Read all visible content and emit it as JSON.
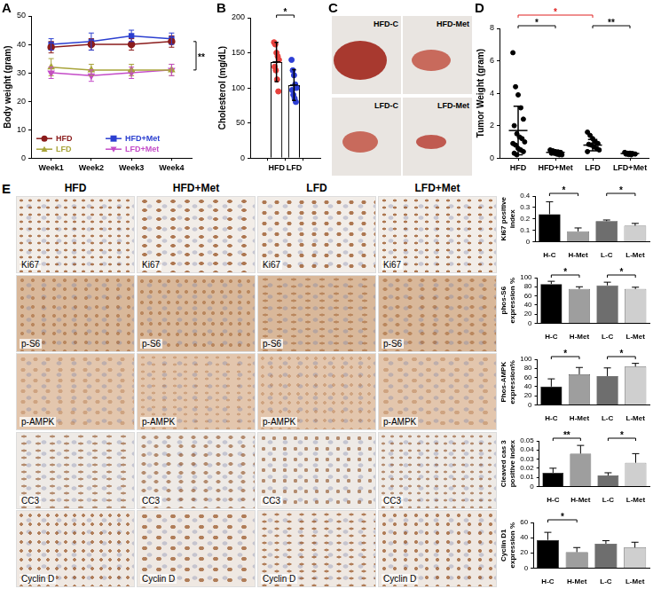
{
  "chart_data": [
    {
      "panel": "A",
      "type": "line",
      "y_label": "Body weight (gram)",
      "categories": [
        "Week1",
        "Week2",
        "Week3",
        "Week4"
      ],
      "series": [
        {
          "name": "HFD",
          "color": "#8b1c1c",
          "marker": "circle",
          "values": [
            39,
            40,
            40,
            41
          ],
          "errors": [
            2,
            2,
            2,
            2
          ]
        },
        {
          "name": "HFD+Met",
          "color": "#2b3fd0",
          "marker": "square",
          "values": [
            40,
            41,
            43,
            42
          ],
          "errors": [
            2,
            3,
            2,
            2
          ]
        },
        {
          "name": "LFD",
          "color": "#a8a43a",
          "marker": "triangle",
          "values": [
            32,
            31,
            31,
            31
          ],
          "errors": [
            3,
            2,
            2,
            2
          ]
        },
        {
          "name": "LFD+Met",
          "color": "#c44cc8",
          "marker": "triangle-down",
          "values": [
            30,
            29,
            30,
            31
          ],
          "errors": [
            2,
            2,
            2,
            2
          ]
        }
      ],
      "ylim": [
        0,
        50
      ],
      "yticks": [
        0,
        10,
        20,
        30,
        40,
        50
      ],
      "legend": "bottom-left",
      "annotations": [
        {
          "text": "**",
          "from": "HFD",
          "to": "LFD"
        }
      ]
    },
    {
      "panel": "B",
      "type": "bar",
      "y_label": "Cholesterol (mg/dL)",
      "categories": [
        "HFD",
        "LFD"
      ],
      "values": [
        137,
        104
      ],
      "errors": [
        28,
        22
      ],
      "points": [
        [
          165,
          162,
          150,
          145,
          140,
          130,
          125,
          112,
          95
        ],
        [
          140,
          125,
          118,
          105,
          100,
          97,
          90,
          85,
          80
        ]
      ],
      "colors": [
        "#e8413c",
        "#2e3fd6"
      ],
      "ylim": [
        0,
        200
      ],
      "yticks": [
        0,
        50,
        100,
        150,
        200
      ],
      "annotations": [
        {
          "text": "*",
          "from": "HFD",
          "to": "LFD"
        }
      ]
    },
    {
      "panel": "D",
      "type": "dot",
      "y_label": "Tumor Weight (gram)",
      "categories": [
        "HFD",
        "HFD+Met",
        "LFD",
        "LFD+Met"
      ],
      "values": [
        1.7,
        0.35,
        0.8,
        0.28
      ],
      "errors": [
        1.5,
        0.1,
        0.35,
        0.06
      ],
      "points": [
        [
          6.5,
          4.4,
          3.9,
          3.1,
          2.4,
          2.0,
          1.5,
          1.3,
          1.2,
          1.0,
          0.9,
          0.8,
          0.6,
          0.5,
          0.4,
          0.3,
          0.2
        ],
        [
          0.5,
          0.45,
          0.4,
          0.38,
          0.35,
          0.3,
          0.3,
          0.25,
          0.2,
          0.2
        ],
        [
          1.6,
          1.4,
          1.2,
          1.0,
          0.9,
          0.85,
          0.8,
          0.7,
          0.6,
          0.5,
          0.4
        ],
        [
          0.35,
          0.3,
          0.3,
          0.28,
          0.25,
          0.25,
          0.22,
          0.2
        ]
      ],
      "color": "#000000",
      "ylim": [
        0,
        8
      ],
      "yticks": [
        0,
        2,
        4,
        6,
        8
      ],
      "annotations": [
        {
          "text": "*",
          "from": "HFD",
          "to": "HFD+Met"
        },
        {
          "text": "*",
          "from": "HFD",
          "to": "LFD",
          "color": "#e02020"
        },
        {
          "text": "**",
          "from": "LFD",
          "to": "LFD+Met"
        }
      ]
    },
    {
      "type": "bar",
      "y_label": "Ki67 positive index",
      "categories": [
        "H-C",
        "H-Met",
        "L-C",
        "L-Met"
      ],
      "values": [
        0.24,
        0.09,
        0.18,
        0.14
      ],
      "errors": [
        0.11,
        0.03,
        0.01,
        0.02
      ],
      "colors": [
        "#000000",
        "#9e9e9e",
        "#6e6e6e",
        "#cfcfcf"
      ],
      "ylim": [
        0,
        0.4
      ],
      "yticks": [
        0,
        0.1,
        0.2,
        0.3,
        0.4
      ],
      "annotations": [
        {
          "text": "*",
          "from": "H-C",
          "to": "H-Met"
        },
        {
          "text": "*",
          "from": "L-C",
          "to": "L-Met"
        }
      ]
    },
    {
      "type": "bar",
      "y_label": "phos-S6 expression %",
      "categories": [
        "H-C",
        "H-Met",
        "L-C",
        "L-Met"
      ],
      "values": [
        86,
        75,
        83,
        75
      ],
      "errors": [
        6,
        5,
        7,
        4
      ],
      "colors": [
        "#000000",
        "#9e9e9e",
        "#6e6e6e",
        "#cfcfcf"
      ],
      "ylim": [
        0,
        100
      ],
      "yticks": [
        0,
        20,
        40,
        60,
        80,
        100
      ],
      "annotations": [
        {
          "text": "*",
          "from": "H-C",
          "to": "H-Met"
        },
        {
          "text": "*",
          "from": "L-C",
          "to": "L-Met"
        }
      ]
    },
    {
      "type": "bar",
      "y_label": "Phos-AMPK expression%",
      "categories": [
        "H-C",
        "H-Met",
        "L-C",
        "L-Met"
      ],
      "values": [
        40,
        67,
        63,
        84
      ],
      "errors": [
        17,
        15,
        18,
        7
      ],
      "colors": [
        "#000000",
        "#9e9e9e",
        "#6e6e6e",
        "#cfcfcf"
      ],
      "ylim": [
        0,
        100
      ],
      "yticks": [
        0,
        20,
        40,
        60,
        80,
        100
      ],
      "annotations": [
        {
          "text": "*",
          "from": "H-C",
          "to": "H-Met"
        },
        {
          "text": "*",
          "from": "L-C",
          "to": "L-Met"
        }
      ]
    },
    {
      "type": "bar",
      "y_label": "Cleaved cas 3 positive index",
      "categories": [
        "H-C",
        "H-Met",
        "L-C",
        "L-Met"
      ],
      "values": [
        0.015,
        0.036,
        0.012,
        0.026
      ],
      "errors": [
        0.005,
        0.009,
        0.003,
        0.01
      ],
      "colors": [
        "#000000",
        "#9e9e9e",
        "#6e6e6e",
        "#cfcfcf"
      ],
      "ylim": [
        0,
        0.05
      ],
      "yticks": [
        0,
        0.01,
        0.02,
        0.03,
        0.04,
        0.05
      ],
      "annotations": [
        {
          "text": "**",
          "from": "H-C",
          "to": "H-Met"
        },
        {
          "text": "*",
          "from": "L-C",
          "to": "L-Met"
        }
      ]
    },
    {
      "type": "bar",
      "y_label": "Cyclin D1 expression %",
      "categories": [
        "H-C",
        "H-Met",
        "L-C",
        "L-Met"
      ],
      "values": [
        37,
        21,
        32,
        27
      ],
      "errors": [
        10,
        6,
        4,
        7
      ],
      "colors": [
        "#000000",
        "#9e9e9e",
        "#6e6e6e",
        "#cfcfcf"
      ],
      "ylim": [
        0,
        60
      ],
      "yticks": [
        0,
        20,
        40,
        60
      ],
      "annotations": [
        {
          "text": "*",
          "from": "H-C",
          "to": "H-Met"
        }
      ]
    }
  ],
  "photo_panel": {
    "panel": "C",
    "labels": [
      "HFD-C",
      "HFD-Met",
      "LFD-C",
      "LFD-Met"
    ]
  },
  "ihc_panel": {
    "panel": "E",
    "columns": [
      "HFD",
      "HFD+Met",
      "LFD",
      "LFD+Met"
    ],
    "rows": [
      "Ki67",
      "p-S6",
      "p-AMPK",
      "CC3",
      "Cyclin D"
    ]
  }
}
